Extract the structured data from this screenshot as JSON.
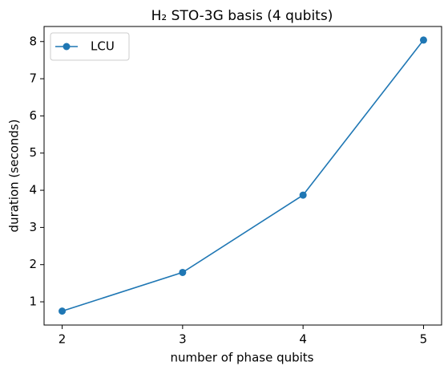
{
  "chart_data": {
    "type": "line",
    "title": "H₂ STO-3G basis (4 qubits)",
    "x_label": "number of phase qubits",
    "y_label": "duration (seconds)",
    "x": [
      2,
      3,
      4,
      5
    ],
    "series": [
      {
        "name": "LCU",
        "color": "#1f77b4",
        "values": [
          0.75,
          1.79,
          3.87,
          8.04
        ]
      }
    ],
    "xlim": [
      1.85,
      5.15
    ],
    "xticks": [
      2,
      3,
      4,
      5
    ],
    "ylim": [
      0.375,
      8.405
    ],
    "yticks": [
      1,
      2,
      3,
      4,
      5,
      6,
      7,
      8
    ],
    "legend": "upper left",
    "marker": "circle"
  }
}
